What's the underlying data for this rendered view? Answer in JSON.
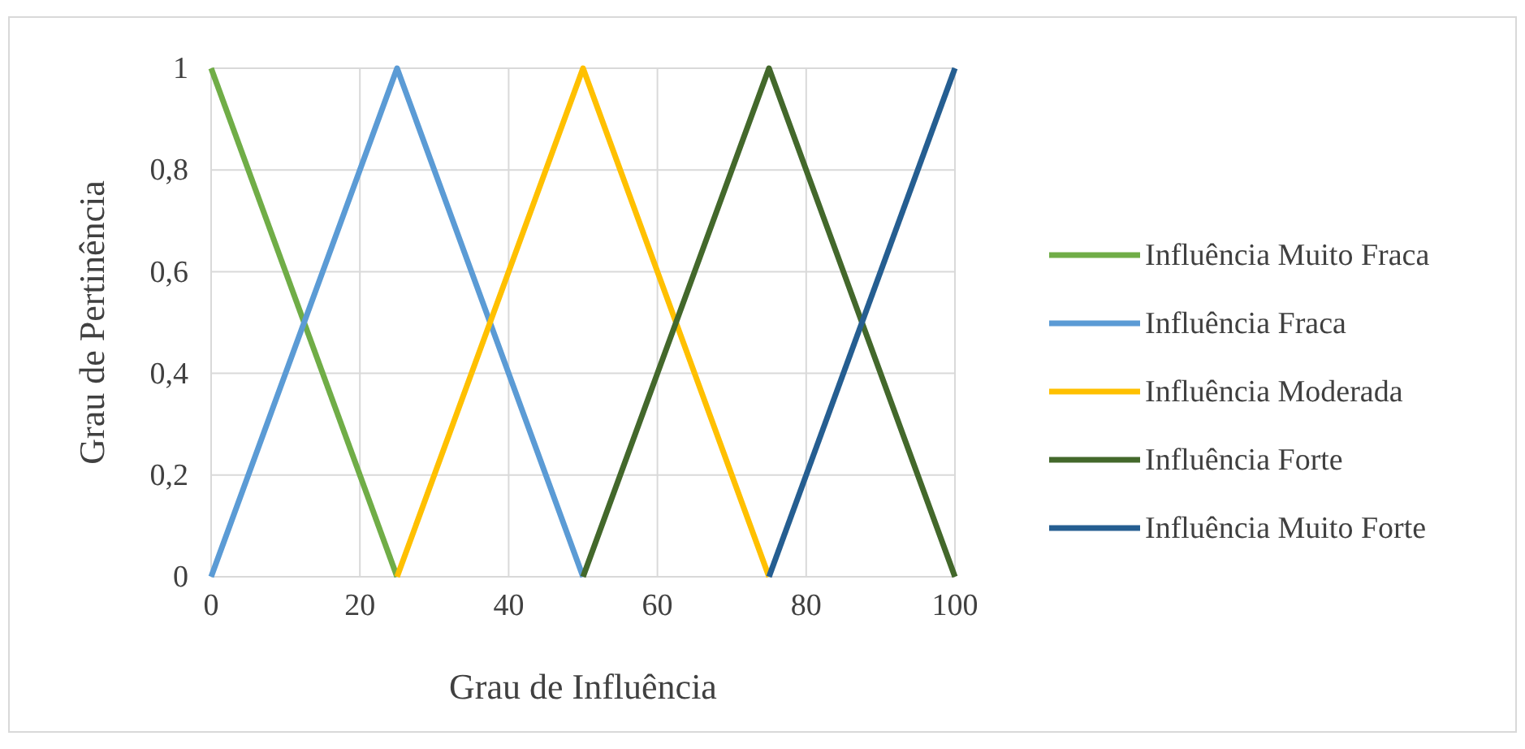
{
  "chart_data": {
    "type": "line",
    "xlabel": "Grau de Influência",
    "ylabel": "Grau de Pertinência",
    "xlim": [
      0,
      100
    ],
    "xticks": [
      0,
      20,
      40,
      60,
      80,
      100
    ],
    "ylim": [
      0,
      1
    ],
    "yticks": [
      0,
      {
        "value": 0.2,
        "label": "0,2"
      },
      {
        "value": 0.4,
        "label": "0,4"
      },
      {
        "value": 0.6,
        "label": "0,6"
      },
      {
        "value": 0.8,
        "label": "0,8"
      },
      1
    ],
    "grid": true,
    "legend": "right",
    "marker": "none",
    "line_style": "solid",
    "series": [
      {
        "name": "Influência Muito Fraca",
        "color": "#70ad47",
        "x": [
          0,
          25
        ],
        "values": [
          1,
          0
        ]
      },
      {
        "name": "Influência Fraca",
        "color": "#5b9bd5",
        "x": [
          0,
          25,
          50
        ],
        "values": [
          0,
          1,
          0
        ]
      },
      {
        "name": "Influência Moderada",
        "color": "#ffc000",
        "x": [
          25,
          50,
          75
        ],
        "values": [
          0,
          1,
          0
        ]
      },
      {
        "name": "Influência Forte",
        "color": "#43682b",
        "x": [
          50,
          75,
          100
        ],
        "values": [
          0,
          1,
          0
        ]
      },
      {
        "name": "Influência Muito Forte",
        "color": "#255e91",
        "x": [
          75,
          100
        ],
        "values": [
          0,
          1
        ]
      }
    ]
  }
}
